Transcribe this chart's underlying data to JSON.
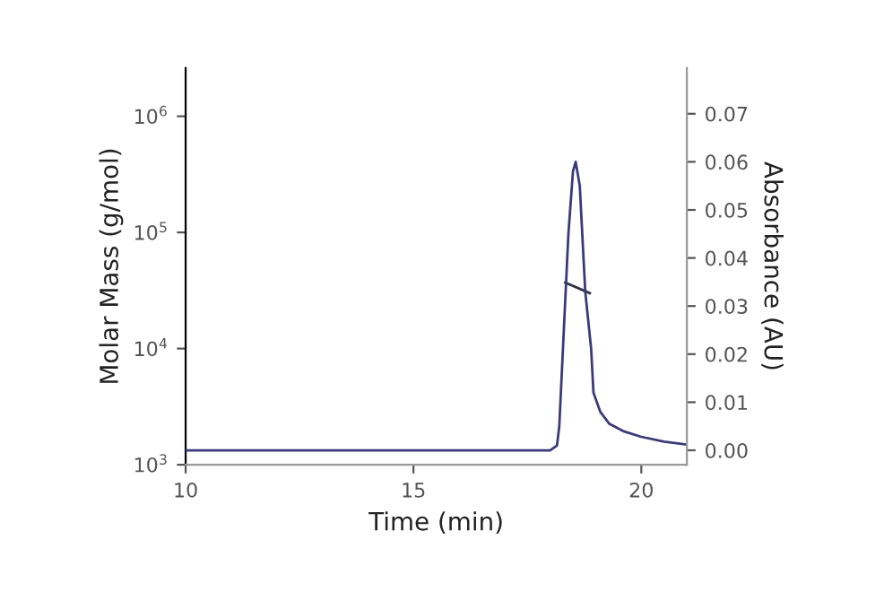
{
  "chart_data": {
    "type": "line",
    "xlabel": "Time (min)",
    "ylabel": "Molar Mass (g/mol)",
    "y2label": "Absorbance (AU)",
    "xlim": [
      10,
      21
    ],
    "xticks": [
      10,
      15,
      20
    ],
    "log": "y",
    "ylim": [
      1000,
      2600000
    ],
    "yticks": [
      {
        "value": 1000,
        "label": "10$^{3}$"
      },
      {
        "value": 10000,
        "label": "10$^{4}$"
      },
      {
        "value": 100000,
        "label": "10$^{5}$"
      },
      {
        "value": 1000000,
        "label": "10$^{6}$"
      }
    ],
    "y2lim": [
      -0.003,
      0.0795
    ],
    "y2ticks": [
      {
        "value": 0,
        "label": "0.00"
      },
      {
        "value": 0.01,
        "label": "0.01"
      },
      {
        "value": 0.02,
        "label": "0.02"
      },
      {
        "value": 0.03,
        "label": "0.03"
      },
      {
        "value": 0.04,
        "label": "0.04"
      },
      {
        "value": 0.05,
        "label": "0.05"
      },
      {
        "value": 0.06,
        "label": "0.06"
      },
      {
        "value": 0.07,
        "label": "0.07"
      }
    ],
    "grid": false,
    "series": [
      {
        "color": "#3a3a7a",
        "axis": "y2",
        "x": [
          10,
          18.0,
          18.15,
          18.2,
          18.3,
          18.4,
          18.5,
          18.56,
          18.65,
          18.77,
          18.9,
          18.95,
          19.1,
          19.3,
          19.6,
          20,
          20.5,
          21
        ],
        "values": [
          0,
          0,
          0.001,
          0.005,
          0.025,
          0.045,
          0.058,
          0.06,
          0.055,
          0.033,
          0.021,
          0.012,
          0.008,
          0.0055,
          0.004,
          0.0028,
          0.0018,
          0.0012
        ]
      },
      {
        "color": "#333344",
        "axis": "y",
        "x": [
          18.33,
          18.87
        ],
        "values": [
          37000,
          30000
        ]
      }
    ]
  }
}
